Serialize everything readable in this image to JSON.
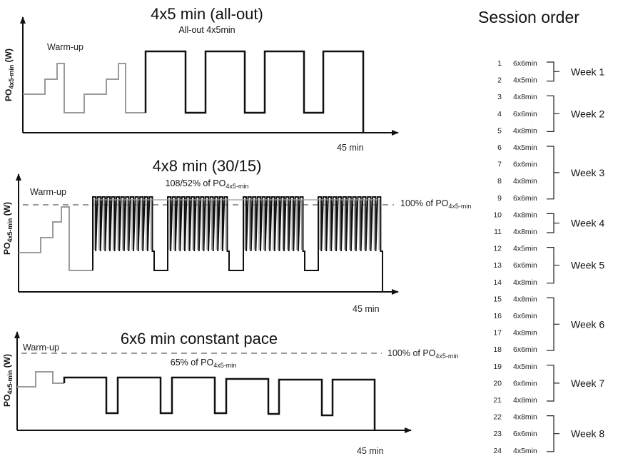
{
  "panels": [
    {
      "title": "4x5 min (all-out)",
      "subtitle": "All-out 4x5min",
      "warmup_label": "Warm-up",
      "ylabel_prefix": "PO",
      "ylabel_sub": "4x5-min",
      "ylabel_suffix": " (W)",
      "duration_label": "45 min",
      "reference_label": null,
      "intervals": 4,
      "interval_type": "all-out"
    },
    {
      "title": "4x8 min (30/15)",
      "subtitle_prefix": "108/52% of PO",
      "subtitle_sub": "4x5-min",
      "warmup_label": "Warm-up",
      "ylabel_prefix": "PO",
      "ylabel_sub": "4x5-min",
      "ylabel_suffix": " (W)",
      "duration_label": "45 min",
      "reference_prefix": "100% of PO",
      "reference_sub": "4x5-min",
      "intervals": 4,
      "interval_type": "30/15"
    },
    {
      "title": "6x6 min constant pace",
      "subtitle_prefix": "65% of PO",
      "subtitle_sub": "4x5-min",
      "warmup_label": "Warm-up",
      "ylabel_prefix": "PO",
      "ylabel_sub": "4x5-min",
      "ylabel_suffix": " (W)",
      "duration_label": "45 min",
      "reference_prefix": "100% of PO",
      "reference_sub": "4x5-min",
      "intervals": 6,
      "interval_type": "constant"
    }
  ],
  "session_order": {
    "title": "Session order",
    "sessions": [
      {
        "n": "1",
        "type": "6x6min"
      },
      {
        "n": "2",
        "type": "4x5min"
      },
      {
        "n": "3",
        "type": "4x8min"
      },
      {
        "n": "4",
        "type": "6x6min"
      },
      {
        "n": "5",
        "type": "4x8min"
      },
      {
        "n": "6",
        "type": "4x5min"
      },
      {
        "n": "7",
        "type": "6x6min"
      },
      {
        "n": "8",
        "type": "4x8min"
      },
      {
        "n": "9",
        "type": "6x6min"
      },
      {
        "n": "10",
        "type": "4x8min"
      },
      {
        "n": "11",
        "type": "4x8min"
      },
      {
        "n": "12",
        "type": "4x5min"
      },
      {
        "n": "13",
        "type": "6x6min"
      },
      {
        "n": "14",
        "type": "4x8min"
      },
      {
        "n": "15",
        "type": "4x8min"
      },
      {
        "n": "16",
        "type": "6x6min"
      },
      {
        "n": "17",
        "type": "4x8min"
      },
      {
        "n": "18",
        "type": "6x6min"
      },
      {
        "n": "19",
        "type": "4x5min"
      },
      {
        "n": "20",
        "type": "6x6min"
      },
      {
        "n": "21",
        "type": "4x8min"
      },
      {
        "n": "22",
        "type": "4x8min"
      },
      {
        "n": "23",
        "type": "6x6min"
      },
      {
        "n": "24",
        "type": "4x5min"
      }
    ],
    "weeks": [
      {
        "label": "Week 1",
        "sessions": [
          1,
          2
        ]
      },
      {
        "label": "Week 2",
        "sessions": [
          3,
          5
        ]
      },
      {
        "label": "Week 3",
        "sessions": [
          6,
          9
        ]
      },
      {
        "label": "Week 4",
        "sessions": [
          10,
          11
        ]
      },
      {
        "label": "Week 5",
        "sessions": [
          12,
          14
        ]
      },
      {
        "label": "Week 6",
        "sessions": [
          15,
          18
        ]
      },
      {
        "label": "Week 7",
        "sessions": [
          19,
          21
        ]
      },
      {
        "label": "Week 8",
        "sessions": [
          22,
          24
        ]
      }
    ]
  },
  "colors": {
    "work_line": "#111111",
    "warmup_line": "#9a9a9a",
    "reference_dash": "#9a9a9a",
    "axis": "#111111"
  }
}
